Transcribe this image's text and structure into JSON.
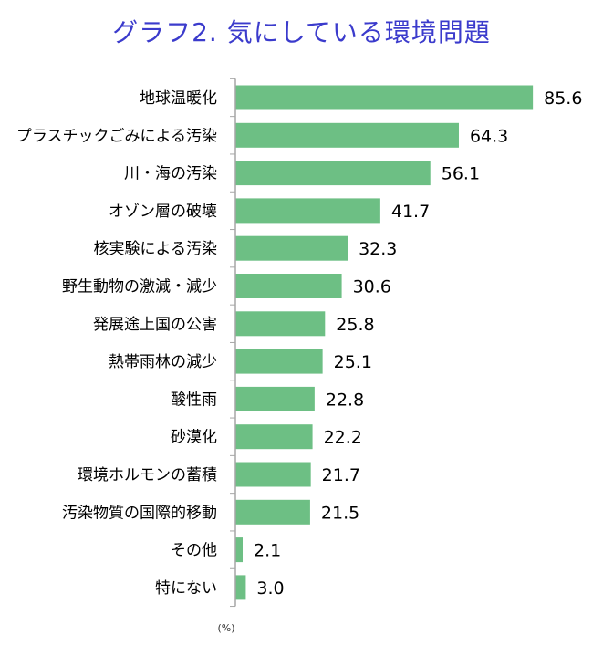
{
  "title": "グラフ2.  気にしている環境問題",
  "colors": {
    "title": "#3b3bcc",
    "bar": "#6dbf84",
    "axis": "#a6a6a6"
  },
  "chart_data": {
    "type": "bar",
    "orientation": "horizontal",
    "title": "グラフ2.  気にしている環境問題",
    "unit": "(%)",
    "xlim": [
      0,
      100
    ],
    "grid": false,
    "categories": [
      "地球温暖化",
      "プラスチックごみによる汚染",
      "川・海の汚染",
      "オゾン層の破壊",
      "核実験による汚染",
      "野生動物の激減・減少",
      "発展途上国の公害",
      "熱帯雨林の減少",
      "酸性雨",
      "砂漠化",
      "環境ホルモンの蓄積",
      "汚染物質の国際的移動",
      "その他",
      "特にない"
    ],
    "values": [
      85.6,
      64.3,
      56.1,
      41.7,
      32.3,
      30.6,
      25.8,
      25.1,
      22.8,
      22.2,
      21.7,
      21.5,
      2.1,
      3.0
    ],
    "value_labels": [
      "85.6",
      "64.3",
      "56.1",
      "41.7",
      "32.3",
      "30.6",
      "25.8",
      "25.1",
      "22.8",
      "22.2",
      "21.7",
      "21.5",
      "2.1",
      "3.0"
    ]
  }
}
